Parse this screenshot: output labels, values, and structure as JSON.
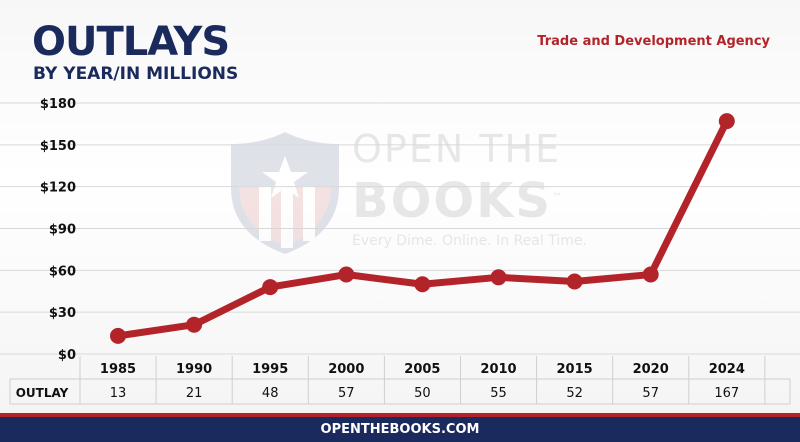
{
  "header": {
    "title": "OUTLAYS",
    "subtitle": "BY YEAR/IN MILLIONS",
    "agency": "Trade and Development Agency"
  },
  "watermark": {
    "line1": "OPEN THE",
    "line2": "BOOKS",
    "tagline": "Every Dime. Online. In Real Time.",
    "tm": "™"
  },
  "footer": {
    "url": "OPENTHEBOOKS.COM"
  },
  "colors": {
    "line": "#b3242a",
    "navy": "#1a2a5c",
    "grid": "#d8d8d8"
  },
  "chart_data": {
    "type": "line",
    "title": "OUTLAYS",
    "subtitle": "BY YEAR/IN MILLIONS",
    "categories": [
      "1985",
      "1990",
      "1995",
      "2000",
      "2005",
      "2010",
      "2015",
      "2020",
      "2024"
    ],
    "series": [
      {
        "values": [
          13,
          21,
          48,
          57,
          50,
          55,
          52,
          57,
          167
        ]
      }
    ],
    "y_ticks": [
      "$0",
      "$30",
      "$60",
      "$90",
      "$120",
      "$150",
      "$180"
    ],
    "ylim": [
      0,
      180
    ],
    "grid": true,
    "table": {
      "row_label": "OUTLAY",
      "values": [
        "13",
        "21",
        "48",
        "57",
        "50",
        "55",
        "52",
        "57",
        "167"
      ]
    }
  }
}
